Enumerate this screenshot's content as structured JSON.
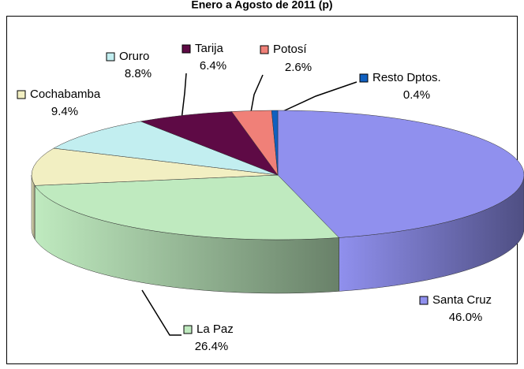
{
  "chart_data": {
    "type": "pie3d",
    "title": "Enero a Agosto de 2011 (p)",
    "categories": [
      "Santa Cruz",
      "La Paz",
      "Cochabamba",
      "Oruro",
      "Tarija",
      "Potosí",
      "Resto Dptos."
    ],
    "values": [
      46,
      26.4,
      9.4,
      8.8,
      6.4,
      2.6,
      0.4
    ],
    "value_labels": [
      "46.0%",
      "26.4%",
      "9.4%",
      "8.8%",
      "6.4%",
      "2.6%",
      "0.4%"
    ],
    "colors": [
      "#9090ee",
      "#bfeabf",
      "#f2efc2",
      "#c2eef0",
      "#5e0a45",
      "#f08078",
      "#1060c0"
    ]
  }
}
